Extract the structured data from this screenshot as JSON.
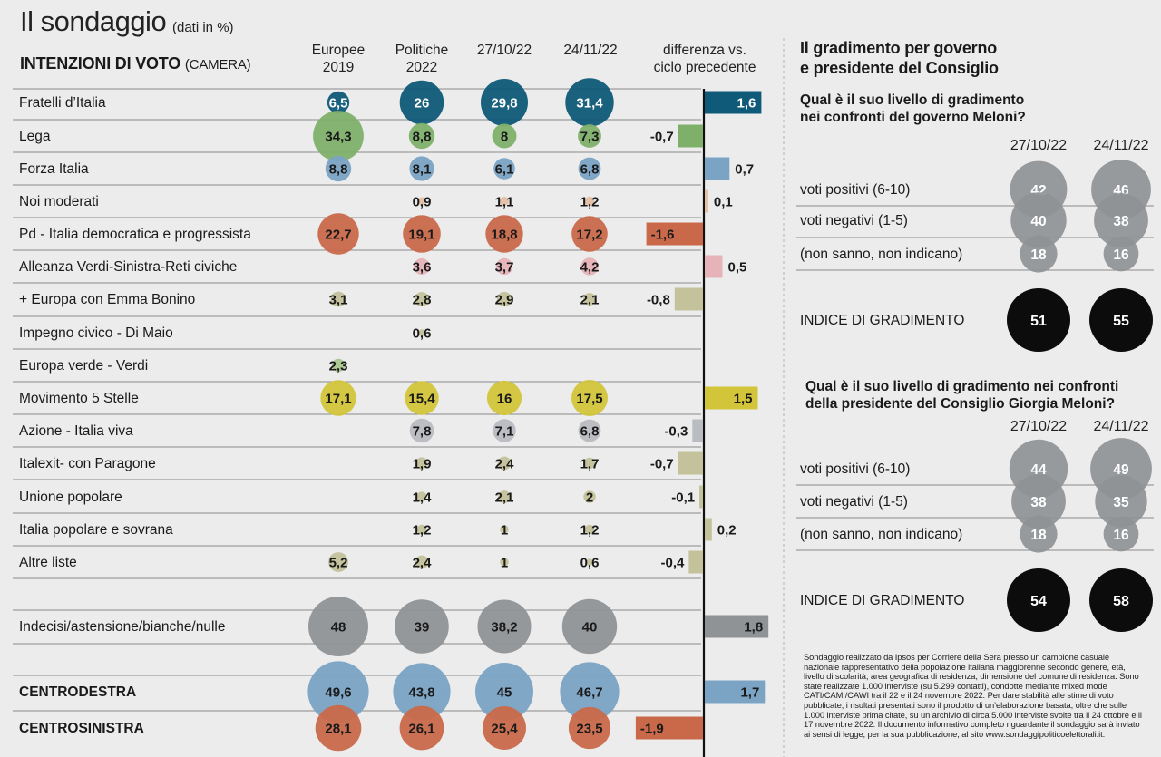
{
  "header": {
    "title": "Il sondaggio",
    "title_note": "(dati in %)",
    "subtitle": "INTENZIONI DI VOTO",
    "subtitle_note": "(CAMERA)"
  },
  "columns": [
    [
      "Europee",
      "2019"
    ],
    [
      "Politiche",
      "2022"
    ],
    [
      "27/10/22",
      ""
    ],
    [
      "24/11/22",
      ""
    ],
    [
      "differenza vs.",
      "ciclo precedente"
    ]
  ],
  "colors": {
    "fdi": "#0f5a78",
    "lega": "#7fb06a",
    "fi": "#7aa3c4",
    "noi": "#e4bfa4",
    "pd": "#c9694a",
    "avs": "#e6b3b8",
    "europa": "#c4c29a",
    "impegno": "#c4c29a",
    "verde": "#a9c68e",
    "m5s": "#d2c53a",
    "azione": "#b9bcc1",
    "italexit": "#c4c29a",
    "unione": "#c4c29a",
    "italpop": "#c4c29a",
    "altre": "#c4c29a",
    "gray": "#8f9396",
    "cdx": "#7aa3c4",
    "csx": "#c9694a",
    "black": "#0c0c0c"
  },
  "chart_data": [
    {
      "type": "bubble-table",
      "title": "INTENZIONI DI VOTO (CAMERA)",
      "unit": "%",
      "periods": [
        "Europee 2019",
        "Politiche 2022",
        "27/10/22",
        "24/11/22"
      ],
      "diff_label": "differenza vs. ciclo precedente",
      "rows": [
        {
          "name": "Fratelli d’Italia",
          "key": "fdi",
          "values": [
            6.5,
            26,
            29.8,
            31.4
          ],
          "labels": [
            "6,5",
            "26",
            "29,8",
            "31,4"
          ],
          "diff": 1.6,
          "diff_label": "1,6"
        },
        {
          "name": "Lega",
          "key": "lega",
          "values": [
            34.3,
            8.8,
            8,
            7.3
          ],
          "labels": [
            "34,3",
            "8,8",
            "8",
            "7,3"
          ],
          "diff": -0.7,
          "diff_label": "-0,7"
        },
        {
          "name": "Forza Italia",
          "key": "fi",
          "values": [
            8.8,
            8.1,
            6.1,
            6.8
          ],
          "labels": [
            "8,8",
            "8,1",
            "6,1",
            "6,8"
          ],
          "diff": 0.7,
          "diff_label": "0,7"
        },
        {
          "name": "Noi moderati",
          "key": "noi",
          "values": [
            null,
            0.9,
            1.1,
            1.2
          ],
          "labels": [
            "",
            "0,9",
            "1,1",
            "1,2"
          ],
          "diff": 0.1,
          "diff_label": "0,1"
        },
        {
          "name": "Pd - Italia democratica e progressista",
          "key": "pd",
          "values": [
            22.7,
            19.1,
            18.8,
            17.2
          ],
          "labels": [
            "22,7",
            "19,1",
            "18,8",
            "17,2"
          ],
          "diff": -1.6,
          "diff_label": "-1,6"
        },
        {
          "name": "Alleanza Verdi-Sinistra-Reti civiche",
          "key": "avs",
          "values": [
            null,
            3.6,
            3.7,
            4.2
          ],
          "labels": [
            "",
            "3,6",
            "3,7",
            "4,2"
          ],
          "diff": 0.5,
          "diff_label": "0,5"
        },
        {
          "name": "+ Europa con Emma Bonino",
          "key": "europa",
          "values": [
            3.1,
            2.8,
            2.9,
            2.1
          ],
          "labels": [
            "3,1",
            "2,8",
            "2,9",
            "2,1"
          ],
          "diff": -0.8,
          "diff_label": "-0,8"
        },
        {
          "name": "Impegno civico - Di Maio",
          "key": "impegno",
          "values": [
            null,
            0.6,
            null,
            null
          ],
          "labels": [
            "",
            "0,6",
            "",
            ""
          ],
          "diff": null,
          "diff_label": ""
        },
        {
          "name": "Europa verde - Verdi",
          "key": "verde",
          "values": [
            2.3,
            null,
            null,
            null
          ],
          "labels": [
            "2,3",
            "",
            "",
            ""
          ],
          "diff": null,
          "diff_label": ""
        },
        {
          "name": "Movimento 5 Stelle",
          "key": "m5s",
          "values": [
            17.1,
            15.4,
            16,
            17.5
          ],
          "labels": [
            "17,1",
            "15,4",
            "16",
            "17,5"
          ],
          "diff": 1.5,
          "diff_label": "1,5"
        },
        {
          "name": "Azione - Italia viva",
          "key": "azione",
          "values": [
            null,
            7.8,
            7.1,
            6.8
          ],
          "labels": [
            "",
            "7,8",
            "7,1",
            "6,8"
          ],
          "diff": -0.3,
          "diff_label": "-0,3"
        },
        {
          "name": "Italexit- con Paragone",
          "key": "italexit",
          "values": [
            null,
            1.9,
            2.4,
            1.7
          ],
          "labels": [
            "",
            "1,9",
            "2,4",
            "1,7"
          ],
          "diff": -0.7,
          "diff_label": "-0,7"
        },
        {
          "name": "Unione popolare",
          "key": "unione",
          "values": [
            null,
            1.4,
            2.1,
            2
          ],
          "labels": [
            "",
            "1,4",
            "2,1",
            "2"
          ],
          "diff": -0.1,
          "diff_label": "-0,1"
        },
        {
          "name": "Italia popolare e sovrana",
          "key": "italpop",
          "values": [
            null,
            1.2,
            1,
            1.2
          ],
          "labels": [
            "",
            "1,2",
            "1",
            "1,2"
          ],
          "diff": 0.2,
          "diff_label": "0,2"
        },
        {
          "name": "Altre liste",
          "key": "altre",
          "values": [
            5.2,
            2.4,
            1,
            0.6
          ],
          "labels": [
            "5,2",
            "2,4",
            "1",
            "0,6"
          ],
          "diff": -0.4,
          "diff_label": "-0,4"
        },
        {
          "name": "Indecisi/astensione/bianche/nulle",
          "key": "gray",
          "values": [
            48,
            39,
            38.2,
            40
          ],
          "labels": [
            "48",
            "39",
            "38,2",
            "40"
          ],
          "diff": 1.8,
          "diff_label": "1,8"
        },
        {
          "name": "CENTRODESTRA",
          "key": "cdx",
          "bold": true,
          "values": [
            49.6,
            43.8,
            45,
            46.7
          ],
          "labels": [
            "49,6",
            "43,8",
            "45",
            "46,7"
          ],
          "diff": 1.7,
          "diff_label": "1,7"
        },
        {
          "name": "CENTROSINISTRA",
          "key": "csx",
          "bold": true,
          "values": [
            28.1,
            26.1,
            25.4,
            23.5
          ],
          "labels": [
            "28,1",
            "26,1",
            "25,4",
            "23,5"
          ],
          "diff": -1.9,
          "diff_label": "-1,9"
        }
      ]
    },
    {
      "type": "bubble-table",
      "title": "Qual è il suo livello di gradimento nei confronti del governo Meloni?",
      "periods": [
        "27/10/22",
        "24/11/22"
      ],
      "rows": [
        {
          "name": "voti positivi (6-10)",
          "values": [
            42,
            46
          ]
        },
        {
          "name": "voti negativi (1-5)",
          "values": [
            40,
            38
          ]
        },
        {
          "name": "(non sanno, non indicano)",
          "values": [
            18,
            16
          ]
        },
        {
          "name": "INDICE DI GRADIMENTO",
          "index": true,
          "values": [
            51,
            55
          ]
        }
      ]
    },
    {
      "type": "bubble-table",
      "title": "Qual è il suo livello di gradimento nei confronti della presidente del Consiglio Giorgia Meloni?",
      "periods": [
        "27/10/22",
        "24/11/22"
      ],
      "rows": [
        {
          "name": "voti positivi (6-10)",
          "values": [
            44,
            49
          ]
        },
        {
          "name": "voti negativi (1-5)",
          "values": [
            38,
            35
          ]
        },
        {
          "name": "(non sanno, non indicano)",
          "values": [
            18,
            16
          ]
        },
        {
          "name": "INDICE DI GRADIMENTO",
          "index": true,
          "values": [
            54,
            58
          ]
        }
      ]
    }
  ],
  "right": {
    "title_line1": "Il gradimento per governo",
    "title_line2": "e presidente del Consiglio",
    "q1_line1": "Qual è il suo livello di gradimento",
    "q1_line2": "nei confronti del governo Meloni?",
    "q2_line1": "Qual è il suo livello di gradimento nei confronti",
    "q2_line2": "della presidente del Consiglio Giorgia Meloni?",
    "date1": "27/10/22",
    "date2": "24/11/22"
  },
  "footnote": "Sondaggio realizzato da Ipsos per Corriere della Sera presso un campione casuale nazionale rappresentativo della popolazione italiana maggiorenne secondo genere, età, livello di scolarità, area geografica di residenza, dimensione del comune di residenza. Sono state realizzate 1.000 interviste (su 5.299 contatti), condotte mediante mixed mode CATI/CAMI/CAWI tra il 22 e il 24 novembre 2022. Per dare stabilità alle stime di voto pubblicate, i risultati presentati sono il prodotto di un’elaborazione basata, oltre che sulle 1.000 interviste prima citate, su un archivio di circa 5.000 interviste svolte tra il 24 ottobre e il 17 novembre 2022. Il documento informativo completo riguardante il sondaggio sarà inviato ai sensi di legge, per la sua pubblicazione, al sito www.sondaggipoliticoelettorali.it."
}
